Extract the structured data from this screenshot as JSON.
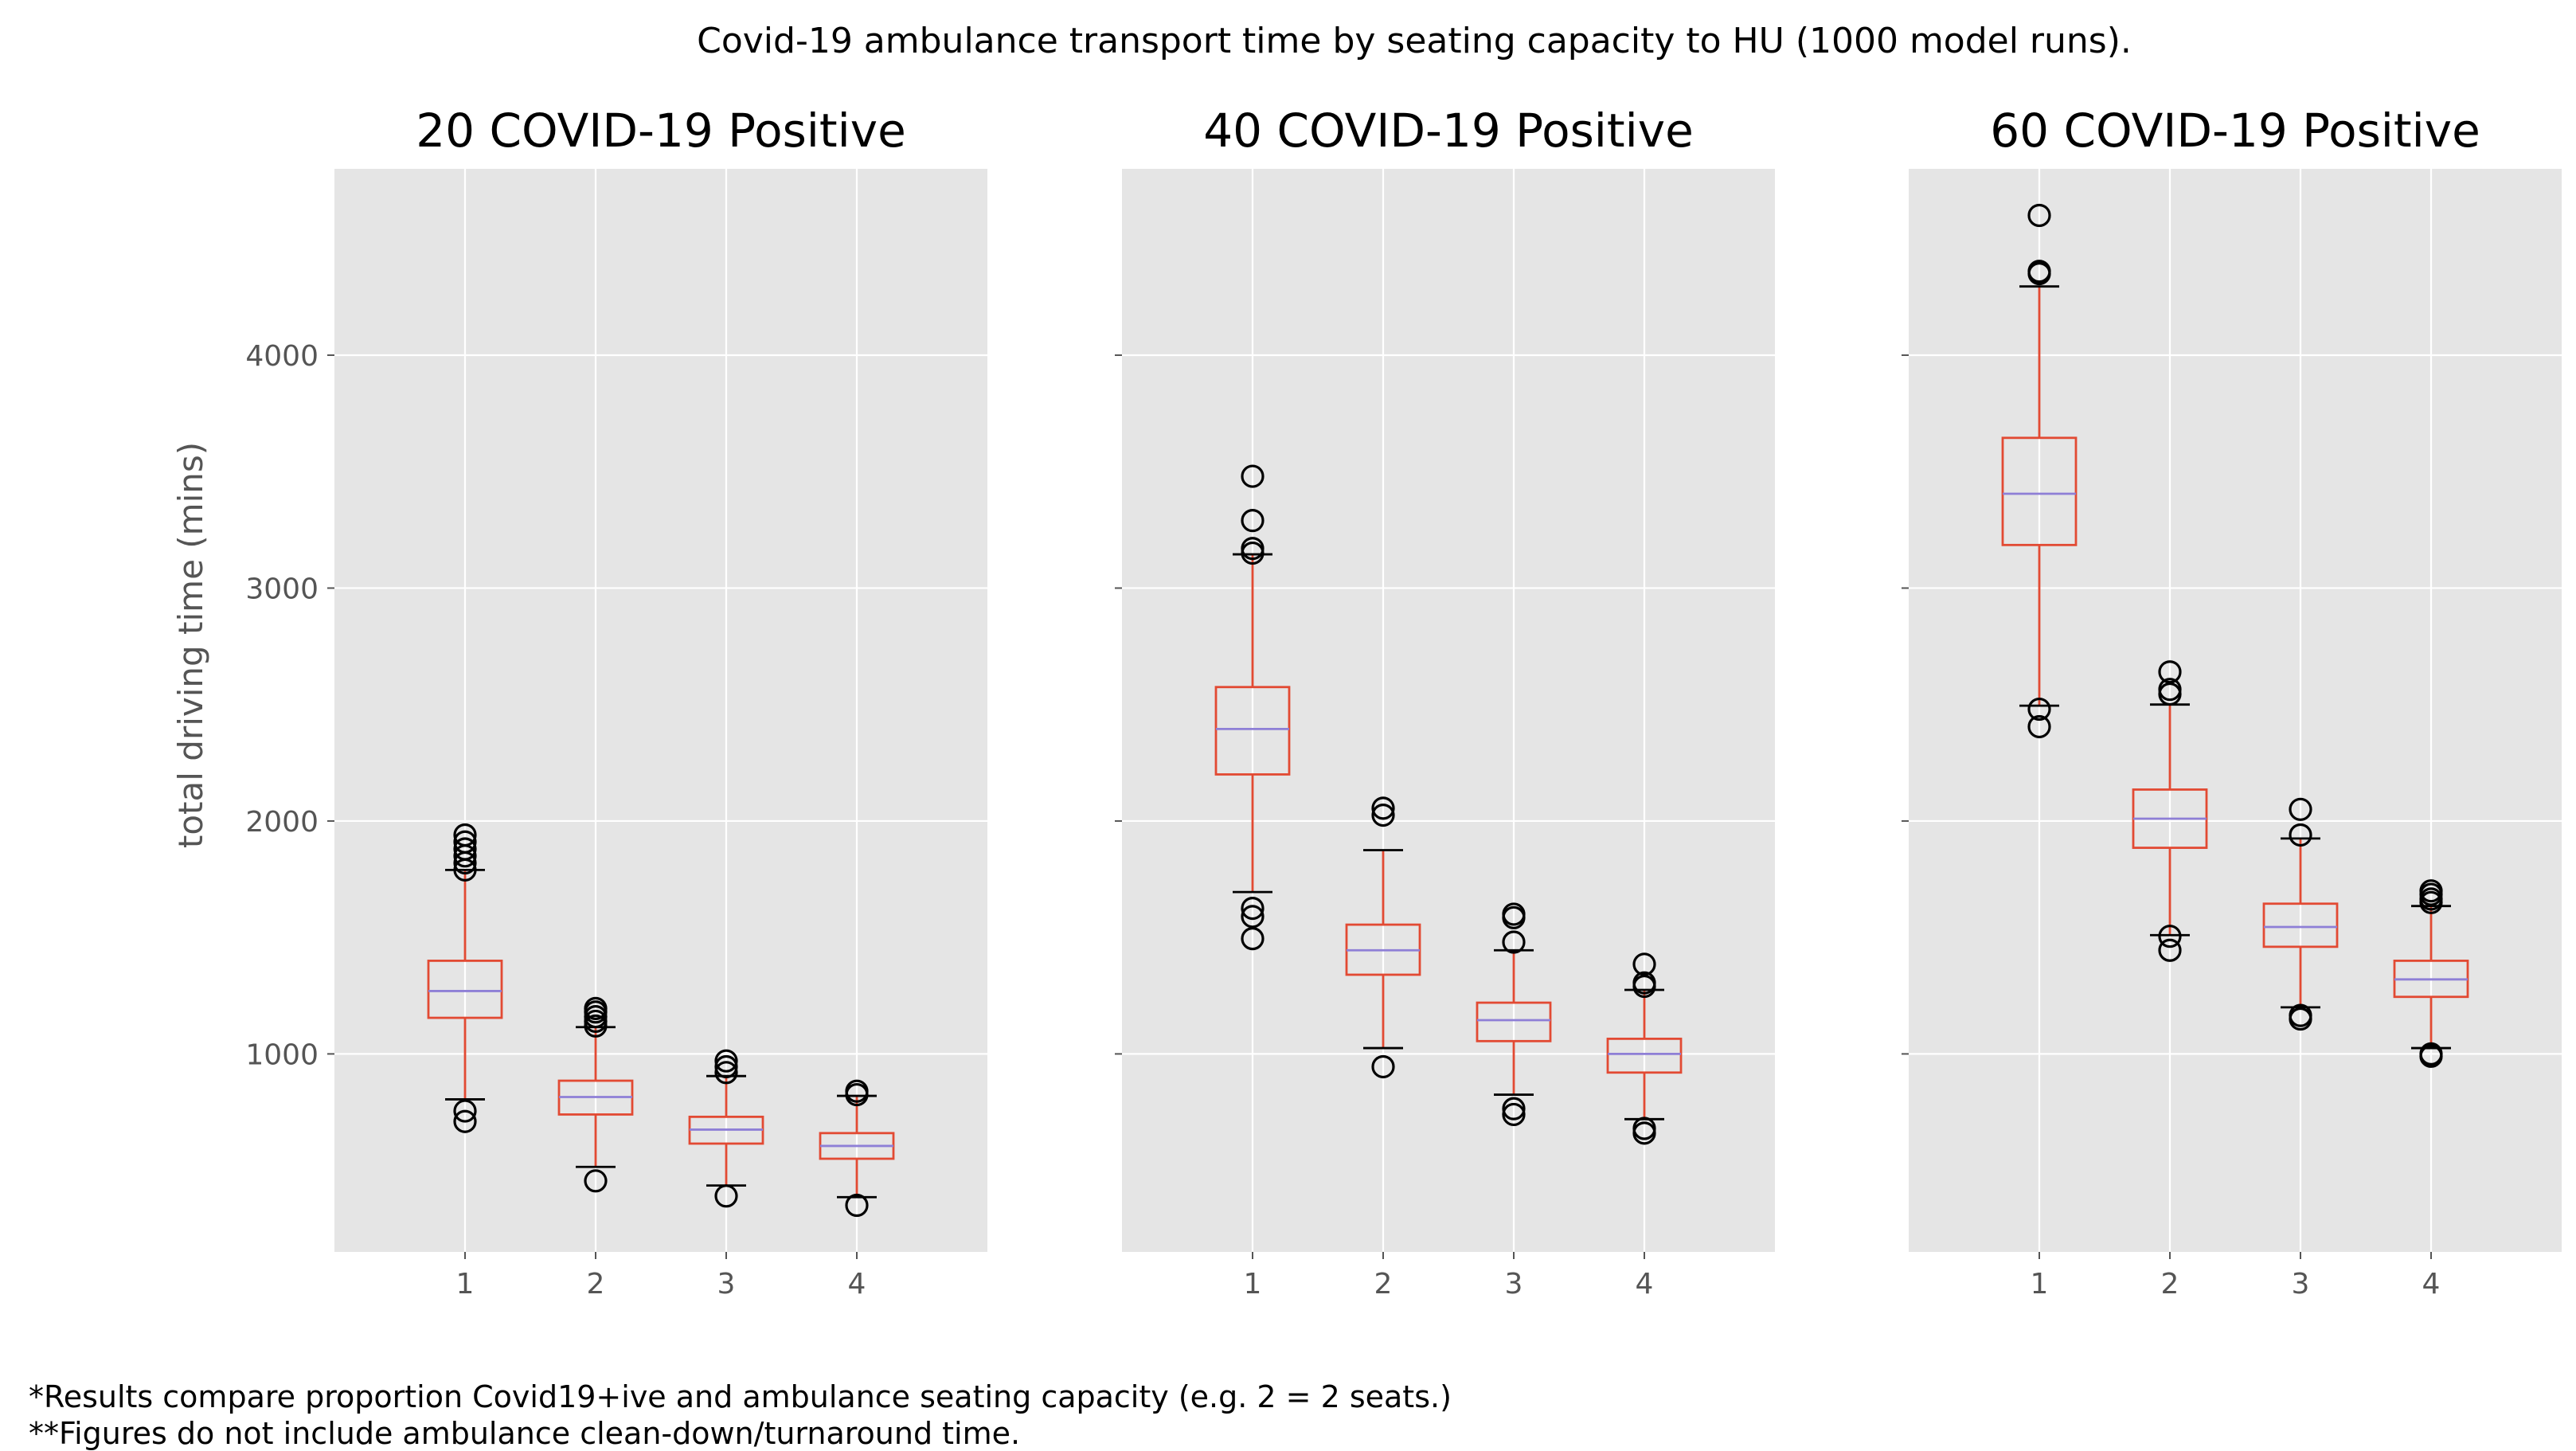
{
  "figure": {
    "title": "Covid-19 ambulance transport time by seating capacity to HU (1000 model runs).",
    "ylabel": "total driving time (mins)",
    "footnotes": [
      "*Results compare proportion Covid19+ive and ambulance seating capacity (e.g. 2 = 2 seats.)",
      "**Figures do not include ambulance clean-down/turnaround time."
    ]
  },
  "colors": {
    "panel_bg": "#e5e5e5",
    "grid": "#ffffff",
    "box": "#e24a33",
    "median": "#8e7fd6",
    "flier": "#000000"
  },
  "chart_data": [
    {
      "type": "box",
      "title": "20 COVID-19 Positive",
      "categories": [
        "1",
        "2",
        "3",
        "4"
      ],
      "ylim": [
        150,
        4800
      ],
      "yticks": [
        1000,
        2000,
        3000,
        4000
      ],
      "grid": true,
      "boxes": [
        {
          "whislo": 805,
          "q1": 1155,
          "med": 1270,
          "q3": 1400,
          "whishi": 1790,
          "fliers": [
            710,
            755,
            1790,
            1820,
            1850,
            1880,
            1910,
            1940
          ]
        },
        {
          "whislo": 515,
          "q1": 740,
          "med": 815,
          "q3": 885,
          "whishi": 1115,
          "fliers": [
            455,
            1120,
            1140,
            1160,
            1180,
            1195
          ]
        },
        {
          "whislo": 435,
          "q1": 615,
          "med": 675,
          "q3": 730,
          "whishi": 905,
          "fliers": [
            390,
            920,
            945,
            970
          ]
        },
        {
          "whislo": 385,
          "q1": 550,
          "med": 605,
          "q3": 660,
          "whishi": 820,
          "fliers": [
            350,
            825,
            840
          ]
        }
      ]
    },
    {
      "type": "box",
      "title": "40 COVID-19 Positive",
      "categories": [
        "1",
        "2",
        "3",
        "4"
      ],
      "ylim": [
        150,
        4800
      ],
      "yticks": [
        1000,
        2000,
        3000,
        4000
      ],
      "grid": true,
      "boxes": [
        {
          "whislo": 1695,
          "q1": 2200,
          "med": 2395,
          "q3": 2575,
          "whishi": 3145,
          "fliers": [
            1495,
            1590,
            1625,
            3150,
            3170,
            3290,
            3480
          ]
        },
        {
          "whislo": 1025,
          "q1": 1340,
          "med": 1445,
          "q3": 1555,
          "whishi": 1875,
          "fliers": [
            945,
            2025,
            2055
          ]
        },
        {
          "whislo": 825,
          "q1": 1055,
          "med": 1145,
          "q3": 1220,
          "whishi": 1445,
          "fliers": [
            740,
            765,
            1480,
            1585,
            1600
          ]
        },
        {
          "whislo": 720,
          "q1": 920,
          "med": 1000,
          "q3": 1065,
          "whishi": 1275,
          "fliers": [
            660,
            680,
            1290,
            1305,
            1385
          ]
        }
      ]
    },
    {
      "type": "box",
      "title": "60 COVID-19 Positive",
      "categories": [
        "1",
        "2",
        "3",
        "4"
      ],
      "ylim": [
        150,
        4800
      ],
      "yticks": [
        1000,
        2000,
        3000,
        4000
      ],
      "grid": true,
      "boxes": [
        {
          "whislo": 2495,
          "q1": 3185,
          "med": 3405,
          "q3": 3645,
          "whishi": 4295,
          "fliers": [
            2405,
            2480,
            4350,
            4360,
            4600
          ]
        },
        {
          "whislo": 1510,
          "q1": 1885,
          "med": 2010,
          "q3": 2135,
          "whishi": 2500,
          "fliers": [
            1445,
            1505,
            2545,
            2565,
            2640
          ]
        },
        {
          "whislo": 1200,
          "q1": 1460,
          "med": 1545,
          "q3": 1645,
          "whishi": 1925,
          "fliers": [
            1150,
            1165,
            1940,
            2050
          ]
        },
        {
          "whislo": 1025,
          "q1": 1245,
          "med": 1320,
          "q3": 1400,
          "whishi": 1635,
          "fliers": [
            990,
            1000,
            1650,
            1665,
            1685,
            1700
          ]
        }
      ]
    }
  ]
}
